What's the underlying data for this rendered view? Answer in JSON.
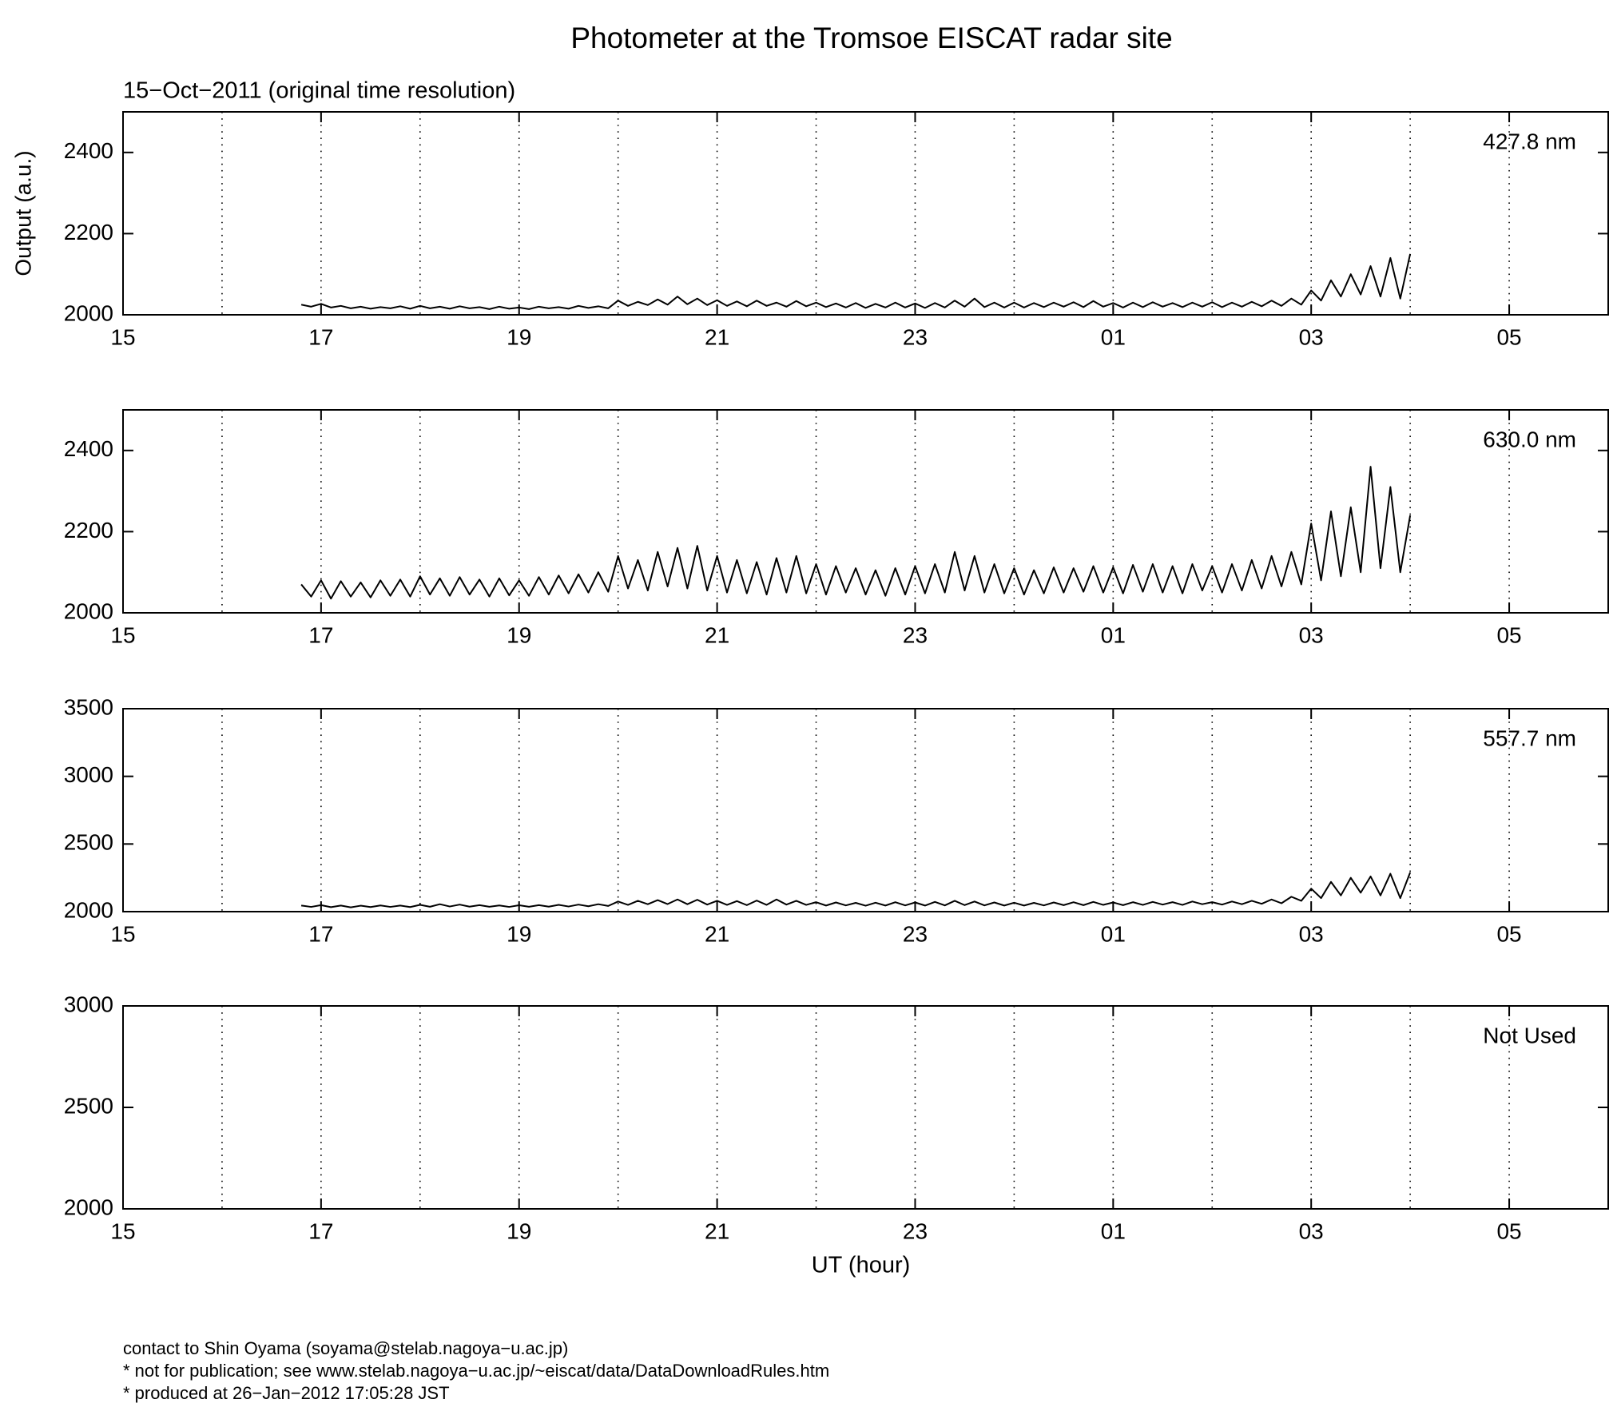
{
  "title": "Photometer at the Tromsoe EISCAT radar site",
  "subtitle": "15−Oct−2011 (original time resolution)",
  "footer": [
    "contact to Shin Oyama (soyama@stelab.nagoya−u.ac.jp)",
    "* not for publication; see www.stelab.nagoya−u.ac.jp/~eiscat/data/DataDownloadRules.htm",
    "* produced at 26−Jan−2012 17:05:28 JST"
  ],
  "chart_data": [
    {
      "type": "line",
      "ylabel": "Output (a.u.)",
      "xlim": [
        15,
        30
      ],
      "xticks": [
        15,
        17,
        19,
        21,
        23,
        {
          "value": 25,
          "label": "01"
        },
        {
          "value": 27,
          "label": "03"
        },
        {
          "value": 29,
          "label": "05"
        }
      ],
      "xgrid": [
        16,
        17,
        18,
        19,
        20,
        21,
        22,
        23,
        24,
        25,
        26,
        27,
        28,
        29
      ],
      "ylim": [
        2000,
        2500
      ],
      "yticks": [
        2000,
        2200,
        2400
      ],
      "x": [
        16.8,
        16.9,
        17.0,
        17.1,
        17.2,
        17.3,
        17.4,
        17.5,
        17.6,
        17.7,
        17.8,
        17.9,
        18.0,
        18.1,
        18.2,
        18.3,
        18.4,
        18.5,
        18.6,
        18.7,
        18.8,
        18.9,
        19.0,
        19.1,
        19.2,
        19.3,
        19.4,
        19.5,
        19.6,
        19.7,
        19.8,
        19.9,
        20.0,
        20.1,
        20.2,
        20.3,
        20.4,
        20.5,
        20.6,
        20.7,
        20.8,
        20.9,
        21.0,
        21.1,
        21.2,
        21.3,
        21.4,
        21.5,
        21.6,
        21.7,
        21.8,
        21.9,
        22.0,
        22.1,
        22.2,
        22.3,
        22.4,
        22.5,
        22.6,
        22.7,
        22.8,
        22.9,
        23.0,
        23.1,
        23.2,
        23.3,
        23.4,
        23.5,
        23.6,
        23.7,
        23.8,
        23.9,
        24.0,
        24.1,
        24.2,
        24.3,
        24.4,
        24.5,
        24.6,
        24.7,
        24.8,
        24.9,
        25.0,
        25.1,
        25.2,
        25.3,
        25.4,
        25.5,
        25.6,
        25.7,
        25.8,
        25.9,
        26.0,
        26.1,
        26.2,
        26.3,
        26.4,
        26.5,
        26.6,
        26.7,
        26.8,
        26.9,
        27.0,
        27.1,
        27.2,
        27.3,
        27.4,
        27.5,
        27.6,
        27.7,
        27.8,
        27.9,
        28.0
      ],
      "series": [
        {
          "name": "427.8 nm",
          "color": "#000000",
          "values": [
            2025,
            2020,
            2027,
            2018,
            2022,
            2016,
            2020,
            2015,
            2019,
            2016,
            2021,
            2015,
            2022,
            2016,
            2020,
            2015,
            2021,
            2016,
            2019,
            2014,
            2020,
            2015,
            2018,
            2014,
            2020,
            2016,
            2019,
            2015,
            2022,
            2017,
            2021,
            2016,
            2035,
            2022,
            2032,
            2024,
            2038,
            2025,
            2045,
            2026,
            2040,
            2024,
            2036,
            2022,
            2033,
            2021,
            2035,
            2022,
            2030,
            2020,
            2034,
            2021,
            2030,
            2019,
            2028,
            2018,
            2029,
            2017,
            2027,
            2018,
            2030,
            2018,
            2028,
            2017,
            2029,
            2018,
            2035,
            2020,
            2040,
            2019,
            2030,
            2018,
            2030,
            2018,
            2029,
            2019,
            2030,
            2020,
            2031,
            2019,
            2034,
            2020,
            2029,
            2018,
            2030,
            2019,
            2031,
            2020,
            2029,
            2019,
            2030,
            2020,
            2031,
            2019,
            2030,
            2020,
            2032,
            2021,
            2035,
            2022,
            2040,
            2025,
            2060,
            2035,
            2085,
            2045,
            2100,
            2050,
            2120,
            2045,
            2140,
            2040,
            2150
          ]
        }
      ]
    },
    {
      "type": "line",
      "xlim": [
        15,
        30
      ],
      "xticks": [
        15,
        17,
        19,
        21,
        23,
        {
          "value": 25,
          "label": "01"
        },
        {
          "value": 27,
          "label": "03"
        },
        {
          "value": 29,
          "label": "05"
        }
      ],
      "xgrid": [
        16,
        17,
        18,
        19,
        20,
        21,
        22,
        23,
        24,
        25,
        26,
        27,
        28,
        29
      ],
      "ylim": [
        2000,
        2500
      ],
      "yticks": [
        2000,
        2200,
        2400
      ],
      "x": [
        16.8,
        16.9,
        17.0,
        17.1,
        17.2,
        17.3,
        17.4,
        17.5,
        17.6,
        17.7,
        17.8,
        17.9,
        18.0,
        18.1,
        18.2,
        18.3,
        18.4,
        18.5,
        18.6,
        18.7,
        18.8,
        18.9,
        19.0,
        19.1,
        19.2,
        19.3,
        19.4,
        19.5,
        19.6,
        19.7,
        19.8,
        19.9,
        20.0,
        20.1,
        20.2,
        20.3,
        20.4,
        20.5,
        20.6,
        20.7,
        20.8,
        20.9,
        21.0,
        21.1,
        21.2,
        21.3,
        21.4,
        21.5,
        21.6,
        21.7,
        21.8,
        21.9,
        22.0,
        22.1,
        22.2,
        22.3,
        22.4,
        22.5,
        22.6,
        22.7,
        22.8,
        22.9,
        23.0,
        23.1,
        23.2,
        23.3,
        23.4,
        23.5,
        23.6,
        23.7,
        23.8,
        23.9,
        24.0,
        24.1,
        24.2,
        24.3,
        24.4,
        24.5,
        24.6,
        24.7,
        24.8,
        24.9,
        25.0,
        25.1,
        25.2,
        25.3,
        25.4,
        25.5,
        25.6,
        25.7,
        25.8,
        25.9,
        26.0,
        26.1,
        26.2,
        26.3,
        26.4,
        26.5,
        26.6,
        26.7,
        26.8,
        26.9,
        27.0,
        27.1,
        27.2,
        27.3,
        27.4,
        27.5,
        27.6,
        27.7,
        27.8,
        27.9,
        28.0
      ],
      "series": [
        {
          "name": "630.0 nm",
          "color": "#000000",
          "values": [
            2070,
            2040,
            2080,
            2035,
            2078,
            2040,
            2075,
            2038,
            2080,
            2042,
            2082,
            2040,
            2090,
            2045,
            2085,
            2042,
            2088,
            2045,
            2082,
            2040,
            2085,
            2043,
            2080,
            2042,
            2088,
            2045,
            2092,
            2048,
            2095,
            2050,
            2100,
            2052,
            2140,
            2060,
            2130,
            2055,
            2150,
            2065,
            2160,
            2060,
            2165,
            2055,
            2140,
            2050,
            2130,
            2048,
            2125,
            2045,
            2135,
            2050,
            2140,
            2048,
            2120,
            2045,
            2115,
            2050,
            2110,
            2045,
            2105,
            2042,
            2110,
            2045,
            2115,
            2048,
            2120,
            2050,
            2150,
            2055,
            2140,
            2050,
            2120,
            2048,
            2110,
            2045,
            2105,
            2048,
            2112,
            2050,
            2110,
            2052,
            2115,
            2050,
            2112,
            2048,
            2118,
            2052,
            2120,
            2050,
            2115,
            2048,
            2120,
            2055,
            2115,
            2050,
            2120,
            2055,
            2130,
            2060,
            2140,
            2065,
            2150,
            2070,
            2220,
            2080,
            2250,
            2090,
            2260,
            2100,
            2360,
            2110,
            2310,
            2100,
            2240
          ]
        }
      ]
    },
    {
      "type": "line",
      "xlim": [
        15,
        30
      ],
      "xticks": [
        15,
        17,
        19,
        21,
        23,
        {
          "value": 25,
          "label": "01"
        },
        {
          "value": 27,
          "label": "03"
        },
        {
          "value": 29,
          "label": "05"
        }
      ],
      "xgrid": [
        16,
        17,
        18,
        19,
        20,
        21,
        22,
        23,
        24,
        25,
        26,
        27,
        28,
        29
      ],
      "ylim": [
        2000,
        3500
      ],
      "yticks": [
        2000,
        2500,
        3000,
        3500
      ],
      "x": [
        16.8,
        16.9,
        17.0,
        17.1,
        17.2,
        17.3,
        17.4,
        17.5,
        17.6,
        17.7,
        17.8,
        17.9,
        18.0,
        18.1,
        18.2,
        18.3,
        18.4,
        18.5,
        18.6,
        18.7,
        18.8,
        18.9,
        19.0,
        19.1,
        19.2,
        19.3,
        19.4,
        19.5,
        19.6,
        19.7,
        19.8,
        19.9,
        20.0,
        20.1,
        20.2,
        20.3,
        20.4,
        20.5,
        20.6,
        20.7,
        20.8,
        20.9,
        21.0,
        21.1,
        21.2,
        21.3,
        21.4,
        21.5,
        21.6,
        21.7,
        21.8,
        21.9,
        22.0,
        22.1,
        22.2,
        22.3,
        22.4,
        22.5,
        22.6,
        22.7,
        22.8,
        22.9,
        23.0,
        23.1,
        23.2,
        23.3,
        23.4,
        23.5,
        23.6,
        23.7,
        23.8,
        23.9,
        24.0,
        24.1,
        24.2,
        24.3,
        24.4,
        24.5,
        24.6,
        24.7,
        24.8,
        24.9,
        25.0,
        25.1,
        25.2,
        25.3,
        25.4,
        25.5,
        25.6,
        25.7,
        25.8,
        25.9,
        26.0,
        26.1,
        26.2,
        26.3,
        26.4,
        26.5,
        26.6,
        26.7,
        26.8,
        26.9,
        27.0,
        27.1,
        27.2,
        27.3,
        27.4,
        27.5,
        27.6,
        27.7,
        27.8,
        27.9,
        28.0
      ],
      "series": [
        {
          "name": "557.7 nm",
          "color": "#000000",
          "values": [
            2045,
            2035,
            2048,
            2033,
            2045,
            2032,
            2044,
            2034,
            2046,
            2035,
            2045,
            2034,
            2050,
            2036,
            2055,
            2038,
            2052,
            2037,
            2048,
            2036,
            2046,
            2035,
            2047,
            2036,
            2048,
            2037,
            2050,
            2038,
            2052,
            2040,
            2055,
            2042,
            2075,
            2050,
            2080,
            2055,
            2085,
            2056,
            2090,
            2055,
            2088,
            2052,
            2080,
            2050,
            2078,
            2048,
            2082,
            2050,
            2090,
            2052,
            2080,
            2050,
            2070,
            2045,
            2068,
            2046,
            2065,
            2044,
            2066,
            2045,
            2070,
            2046,
            2068,
            2045,
            2072,
            2046,
            2080,
            2048,
            2075,
            2046,
            2068,
            2045,
            2066,
            2045,
            2065,
            2046,
            2068,
            2048,
            2070,
            2048,
            2072,
            2050,
            2068,
            2048,
            2070,
            2050,
            2072,
            2052,
            2070,
            2050,
            2075,
            2055,
            2070,
            2052,
            2075,
            2055,
            2080,
            2058,
            2090,
            2062,
            2110,
            2080,
            2170,
            2100,
            2220,
            2120,
            2250,
            2140,
            2260,
            2120,
            2280,
            2100,
            2290
          ]
        }
      ]
    },
    {
      "type": "line",
      "xlabel": "UT (hour)",
      "xlim": [
        15,
        30
      ],
      "xticks": [
        15,
        17,
        19,
        21,
        23,
        {
          "value": 25,
          "label": "01"
        },
        {
          "value": 27,
          "label": "03"
        },
        {
          "value": 29,
          "label": "05"
        }
      ],
      "xgrid": [
        16,
        17,
        18,
        19,
        20,
        21,
        22,
        23,
        24,
        25,
        26,
        27,
        28,
        29
      ],
      "ylim": [
        2000,
        3000
      ],
      "yticks": [
        2000,
        2500,
        3000
      ],
      "x": [],
      "series": [
        {
          "name": "Not Used",
          "color": "#000000",
          "values": []
        }
      ]
    }
  ]
}
